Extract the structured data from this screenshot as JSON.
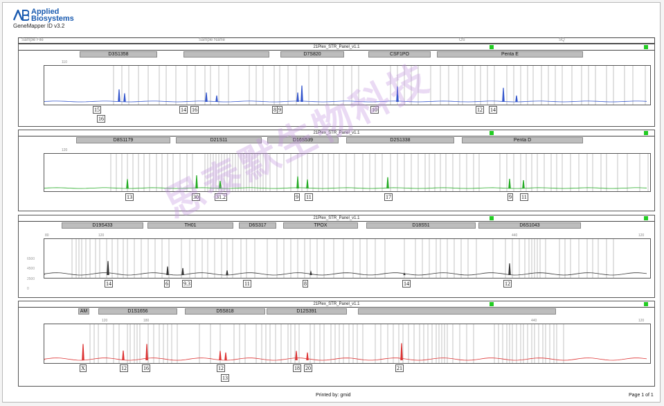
{
  "brand": {
    "line1": "Applied",
    "line2": "Biosystems",
    "app_name": "GeneMapper ID v3.2"
  },
  "header_strip": {
    "left": "Sample File",
    "mid": "Sample Name",
    "right1": "OS",
    "right2": "SQ"
  },
  "panels": [
    {
      "title": "21Plex_STR_Panel_v1.1",
      "color": "#3355cc",
      "markers": [
        "D3S1358",
        "",
        "D7S820",
        "CSF1PO",
        "Penta E"
      ],
      "scale": [
        "110",
        "",
        "",
        "",
        "",
        "",
        "",
        ""
      ],
      "yticks": [
        "",
        "",
        ""
      ],
      "alleles": [
        {
          "label": "15",
          "sub": "16"
        },
        {
          "label": "14",
          "sub": ""
        },
        {
          "label": "16",
          "sub": ""
        },
        {
          "label": "8",
          "sub": ""
        },
        {
          "label": "9",
          "sub": ""
        },
        {
          "label": "10",
          "sub": ""
        },
        {
          "label": "12",
          "sub": ""
        },
        {
          "label": "14",
          "sub": ""
        }
      ]
    },
    {
      "title": "21Plex_STR_Panel_v1.1",
      "color": "#22aa22",
      "markers": [
        "D8S1179",
        "D21S11",
        "D16S539",
        "D2S1338",
        "Penta D"
      ],
      "scale": [
        "120"
      ],
      "yticks": [
        "",
        "",
        ""
      ],
      "alleles": [
        {
          "label": "13"
        },
        {
          "label": "30"
        },
        {
          "label": "31.2"
        },
        {
          "label": "9"
        },
        {
          "label": "11"
        },
        {
          "label": "17"
        },
        {
          "label": "9"
        },
        {
          "label": "11"
        }
      ]
    },
    {
      "title": "21Plex_STR_Panel_v1.1",
      "color": "#333333",
      "markers": [
        "D19S433",
        "TH01",
        "D6S317",
        "TPOX",
        "D18S51",
        "D6S1043"
      ],
      "scale": [
        "80",
        "120",
        "440",
        "120"
      ],
      "yticks": [
        "6500",
        "4500",
        "2500",
        "0"
      ],
      "alleles": [
        {
          "label": "14"
        },
        {
          "label": "6"
        },
        {
          "label": "9.3"
        },
        {
          "label": "11"
        },
        {
          "label": "8"
        },
        {
          "label": "14"
        },
        {
          "label": "12"
        }
      ]
    },
    {
      "title": "21Plex_STR_Panel_v1.1",
      "color": "#dd3333",
      "markers": [
        "AM",
        "D1S1656",
        "D5S818",
        "D12S391",
        ""
      ],
      "scale": [
        "120",
        "180",
        "440",
        "120"
      ],
      "yticks": [
        "",
        "",
        ""
      ],
      "alleles": [
        {
          "label": "X"
        },
        {
          "label": "12"
        },
        {
          "label": "16"
        },
        {
          "label": "12"
        },
        {
          "label": "13"
        },
        {
          "label": "18"
        },
        {
          "label": "20"
        },
        {
          "label": "21"
        }
      ]
    }
  ],
  "footer": {
    "printed_by": "Printed by: gmid",
    "page": "Page 1 of 1"
  },
  "watermark": "思泰默生物科技",
  "colors": {
    "accent": "#1a5bb0",
    "status_ok": "#22cc22"
  }
}
